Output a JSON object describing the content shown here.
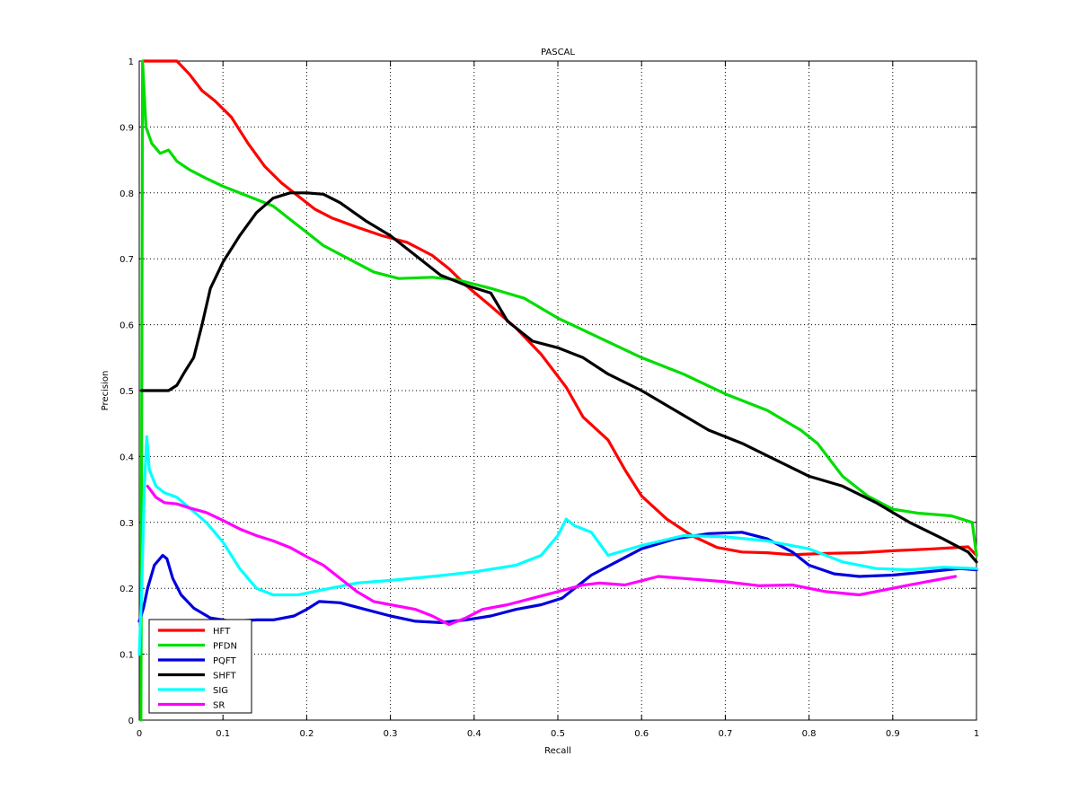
{
  "chart_data": {
    "type": "line",
    "title": "PASCAL",
    "xlabel": "Recall",
    "ylabel": "Precision",
    "xlim": [
      0,
      1
    ],
    "ylim": [
      0,
      1
    ],
    "xticks": [
      "0",
      "0.1",
      "0.2",
      "0.3",
      "0.4",
      "0.5",
      "0.6",
      "0.7",
      "0.8",
      "0.9",
      "1"
    ],
    "yticks": [
      "0",
      "0.1",
      "0.2",
      "0.3",
      "0.4",
      "0.5",
      "0.6",
      "0.7",
      "0.8",
      "0.9",
      "1"
    ],
    "grid": true,
    "grid_style": "dotted",
    "legend_position": "bottom-left",
    "series": [
      {
        "name": "HFT",
        "color": "#ff0000",
        "points": [
          [
            0.005,
            1.0
          ],
          [
            0.045,
            1.0
          ],
          [
            0.06,
            0.98
          ],
          [
            0.075,
            0.955
          ],
          [
            0.09,
            0.94
          ],
          [
            0.11,
            0.915
          ],
          [
            0.13,
            0.875
          ],
          [
            0.15,
            0.84
          ],
          [
            0.17,
            0.815
          ],
          [
            0.19,
            0.795
          ],
          [
            0.21,
            0.775
          ],
          [
            0.23,
            0.762
          ],
          [
            0.26,
            0.748
          ],
          [
            0.29,
            0.735
          ],
          [
            0.32,
            0.725
          ],
          [
            0.35,
            0.705
          ],
          [
            0.37,
            0.685
          ],
          [
            0.39,
            0.66
          ],
          [
            0.42,
            0.628
          ],
          [
            0.45,
            0.595
          ],
          [
            0.48,
            0.555
          ],
          [
            0.51,
            0.505
          ],
          [
            0.53,
            0.46
          ],
          [
            0.56,
            0.425
          ],
          [
            0.58,
            0.38
          ],
          [
            0.6,
            0.34
          ],
          [
            0.63,
            0.305
          ],
          [
            0.66,
            0.28
          ],
          [
            0.69,
            0.262
          ],
          [
            0.72,
            0.255
          ],
          [
            0.75,
            0.254
          ],
          [
            0.78,
            0.251
          ],
          [
            0.82,
            0.253
          ],
          [
            0.86,
            0.254
          ],
          [
            0.9,
            0.257
          ],
          [
            0.95,
            0.26
          ],
          [
            0.99,
            0.263
          ],
          [
            1.0,
            0.25
          ]
        ]
      },
      {
        "name": "PFDN",
        "color": "#00dd00",
        "points": [
          [
            0.002,
            0.0
          ],
          [
            0.003,
            0.5
          ],
          [
            0.004,
            1.0
          ],
          [
            0.008,
            0.9
          ],
          [
            0.015,
            0.875
          ],
          [
            0.025,
            0.86
          ],
          [
            0.035,
            0.865
          ],
          [
            0.045,
            0.848
          ],
          [
            0.06,
            0.835
          ],
          [
            0.08,
            0.822
          ],
          [
            0.1,
            0.81
          ],
          [
            0.13,
            0.795
          ],
          [
            0.16,
            0.78
          ],
          [
            0.18,
            0.76
          ],
          [
            0.2,
            0.74
          ],
          [
            0.22,
            0.72
          ],
          [
            0.25,
            0.7
          ],
          [
            0.28,
            0.68
          ],
          [
            0.31,
            0.67
          ],
          [
            0.35,
            0.672
          ],
          [
            0.38,
            0.668
          ],
          [
            0.42,
            0.655
          ],
          [
            0.46,
            0.64
          ],
          [
            0.5,
            0.61
          ],
          [
            0.55,
            0.58
          ],
          [
            0.6,
            0.55
          ],
          [
            0.65,
            0.525
          ],
          [
            0.7,
            0.495
          ],
          [
            0.75,
            0.47
          ],
          [
            0.79,
            0.44
          ],
          [
            0.81,
            0.42
          ],
          [
            0.84,
            0.37
          ],
          [
            0.87,
            0.34
          ],
          [
            0.9,
            0.32
          ],
          [
            0.93,
            0.314
          ],
          [
            0.97,
            0.31
          ],
          [
            0.995,
            0.3
          ],
          [
            1.0,
            0.25
          ]
        ]
      },
      {
        "name": "PQFT",
        "color": "#0000dd",
        "points": [
          [
            0.0,
            0.15
          ],
          [
            0.005,
            0.17
          ],
          [
            0.01,
            0.2
          ],
          [
            0.018,
            0.235
          ],
          [
            0.028,
            0.25
          ],
          [
            0.033,
            0.245
          ],
          [
            0.04,
            0.215
          ],
          [
            0.05,
            0.19
          ],
          [
            0.065,
            0.17
          ],
          [
            0.085,
            0.155
          ],
          [
            0.11,
            0.15
          ],
          [
            0.14,
            0.152
          ],
          [
            0.16,
            0.152
          ],
          [
            0.185,
            0.158
          ],
          [
            0.2,
            0.168
          ],
          [
            0.215,
            0.18
          ],
          [
            0.24,
            0.178
          ],
          [
            0.27,
            0.168
          ],
          [
            0.3,
            0.158
          ],
          [
            0.33,
            0.15
          ],
          [
            0.36,
            0.148
          ],
          [
            0.39,
            0.152
          ],
          [
            0.42,
            0.158
          ],
          [
            0.45,
            0.168
          ],
          [
            0.48,
            0.175
          ],
          [
            0.505,
            0.185
          ],
          [
            0.52,
            0.2
          ],
          [
            0.54,
            0.22
          ],
          [
            0.57,
            0.24
          ],
          [
            0.6,
            0.26
          ],
          [
            0.64,
            0.275
          ],
          [
            0.68,
            0.283
          ],
          [
            0.72,
            0.285
          ],
          [
            0.75,
            0.275
          ],
          [
            0.78,
            0.255
          ],
          [
            0.8,
            0.235
          ],
          [
            0.83,
            0.222
          ],
          [
            0.86,
            0.218
          ],
          [
            0.9,
            0.22
          ],
          [
            0.94,
            0.225
          ],
          [
            0.98,
            0.23
          ],
          [
            1.0,
            0.228
          ]
        ]
      },
      {
        "name": "SHFT",
        "color": "#000000",
        "points": [
          [
            0.003,
            0.5
          ],
          [
            0.035,
            0.5
          ],
          [
            0.045,
            0.508
          ],
          [
            0.055,
            0.53
          ],
          [
            0.065,
            0.55
          ],
          [
            0.075,
            0.6
          ],
          [
            0.085,
            0.655
          ],
          [
            0.1,
            0.695
          ],
          [
            0.12,
            0.735
          ],
          [
            0.14,
            0.77
          ],
          [
            0.16,
            0.792
          ],
          [
            0.18,
            0.8
          ],
          [
            0.2,
            0.8
          ],
          [
            0.22,
            0.798
          ],
          [
            0.24,
            0.785
          ],
          [
            0.27,
            0.758
          ],
          [
            0.3,
            0.735
          ],
          [
            0.33,
            0.705
          ],
          [
            0.36,
            0.675
          ],
          [
            0.39,
            0.66
          ],
          [
            0.42,
            0.648
          ],
          [
            0.44,
            0.605
          ],
          [
            0.47,
            0.575
          ],
          [
            0.5,
            0.565
          ],
          [
            0.53,
            0.55
          ],
          [
            0.56,
            0.525
          ],
          [
            0.6,
            0.5
          ],
          [
            0.64,
            0.47
          ],
          [
            0.68,
            0.44
          ],
          [
            0.72,
            0.42
          ],
          [
            0.76,
            0.395
          ],
          [
            0.8,
            0.37
          ],
          [
            0.84,
            0.355
          ],
          [
            0.88,
            0.33
          ],
          [
            0.92,
            0.3
          ],
          [
            0.96,
            0.275
          ],
          [
            0.99,
            0.255
          ],
          [
            1.0,
            0.24
          ]
        ]
      },
      {
        "name": "SIG",
        "color": "#00ffff",
        "points": [
          [
            0.0,
            0.1
          ],
          [
            0.003,
            0.2
          ],
          [
            0.006,
            0.35
          ],
          [
            0.009,
            0.43
          ],
          [
            0.012,
            0.38
          ],
          [
            0.02,
            0.355
          ],
          [
            0.03,
            0.345
          ],
          [
            0.045,
            0.338
          ],
          [
            0.06,
            0.322
          ],
          [
            0.08,
            0.3
          ],
          [
            0.1,
            0.27
          ],
          [
            0.12,
            0.23
          ],
          [
            0.14,
            0.2
          ],
          [
            0.16,
            0.19
          ],
          [
            0.19,
            0.19
          ],
          [
            0.22,
            0.198
          ],
          [
            0.26,
            0.208
          ],
          [
            0.3,
            0.212
          ],
          [
            0.35,
            0.218
          ],
          [
            0.4,
            0.225
          ],
          [
            0.45,
            0.235
          ],
          [
            0.48,
            0.25
          ],
          [
            0.5,
            0.28
          ],
          [
            0.51,
            0.305
          ],
          [
            0.52,
            0.295
          ],
          [
            0.54,
            0.285
          ],
          [
            0.56,
            0.25
          ],
          [
            0.6,
            0.265
          ],
          [
            0.65,
            0.28
          ],
          [
            0.7,
            0.278
          ],
          [
            0.75,
            0.272
          ],
          [
            0.8,
            0.26
          ],
          [
            0.84,
            0.24
          ],
          [
            0.88,
            0.23
          ],
          [
            0.92,
            0.228
          ],
          [
            0.96,
            0.232
          ],
          [
            1.0,
            0.23
          ]
        ]
      },
      {
        "name": "SR",
        "color": "#ff00ff",
        "points": [
          [
            0.01,
            0.355
          ],
          [
            0.02,
            0.338
          ],
          [
            0.03,
            0.33
          ],
          [
            0.045,
            0.328
          ],
          [
            0.06,
            0.322
          ],
          [
            0.08,
            0.315
          ],
          [
            0.1,
            0.303
          ],
          [
            0.12,
            0.29
          ],
          [
            0.14,
            0.28
          ],
          [
            0.16,
            0.272
          ],
          [
            0.18,
            0.262
          ],
          [
            0.2,
            0.248
          ],
          [
            0.22,
            0.235
          ],
          [
            0.24,
            0.215
          ],
          [
            0.26,
            0.195
          ],
          [
            0.28,
            0.18
          ],
          [
            0.3,
            0.175
          ],
          [
            0.33,
            0.168
          ],
          [
            0.35,
            0.158
          ],
          [
            0.37,
            0.145
          ],
          [
            0.39,
            0.155
          ],
          [
            0.41,
            0.168
          ],
          [
            0.44,
            0.175
          ],
          [
            0.47,
            0.185
          ],
          [
            0.5,
            0.195
          ],
          [
            0.53,
            0.205
          ],
          [
            0.55,
            0.208
          ],
          [
            0.58,
            0.205
          ],
          [
            0.62,
            0.218
          ],
          [
            0.65,
            0.215
          ],
          [
            0.7,
            0.21
          ],
          [
            0.74,
            0.204
          ],
          [
            0.78,
            0.205
          ],
          [
            0.82,
            0.195
          ],
          [
            0.86,
            0.19
          ],
          [
            0.9,
            0.2
          ],
          [
            0.94,
            0.21
          ],
          [
            0.975,
            0.218
          ]
        ]
      }
    ]
  }
}
